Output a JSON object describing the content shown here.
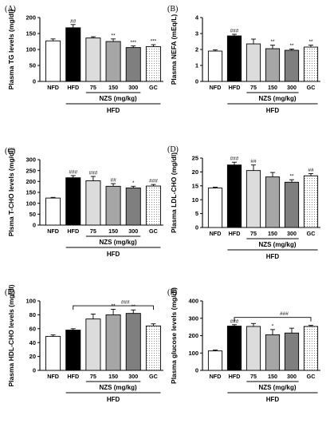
{
  "colors": {
    "NFD": "#ffffff",
    "HFD": "#000000",
    "NZS75": "#dcdcdc",
    "NZS150": "#a6a6a6",
    "NZS300": "#7f7f7f",
    "GC": "#ffffff",
    "GC_pattern": "dotted",
    "axis": "#000000"
  },
  "chart_data": [
    {
      "panel": "(A)",
      "type": "bar",
      "ylabel": "Plasma TG levels (mg/dl)",
      "categories": [
        "NFD",
        "HFD",
        "75",
        "150",
        "300",
        "GC"
      ],
      "values": [
        127,
        168,
        136,
        125,
        106,
        109
      ],
      "errors": [
        6,
        10,
        4,
        8,
        5,
        6
      ],
      "significance": [
        "",
        "##",
        "",
        "**",
        "***",
        "***"
      ],
      "ylim": [
        0,
        200
      ],
      "yticks": [
        0,
        50,
        100,
        150,
        200
      ],
      "group_label": "NZS (mg/kg)",
      "bottom_label": "HFD",
      "bracket": null
    },
    {
      "panel": "(B)",
      "type": "bar",
      "ylabel": "Plasma NEFA (mEq/L)",
      "categories": [
        "NFD",
        "HFD",
        "75",
        "150",
        "300",
        "GC"
      ],
      "values": [
        1.9,
        2.85,
        2.35,
        2.05,
        1.95,
        2.15
      ],
      "errors": [
        0.08,
        0.1,
        0.3,
        0.22,
        0.08,
        0.12
      ],
      "significance": [
        "",
        "###",
        "",
        "**",
        "**",
        "**"
      ],
      "ylim": [
        0,
        4
      ],
      "yticks": [
        0,
        1,
        2,
        3,
        4
      ],
      "group_label": "NZS (mg/kg)",
      "bottom_label": "HFD",
      "bracket": null
    },
    {
      "panel": "(C)",
      "type": "bar",
      "ylabel": "Plsma T-CHO levels (mg/dl)",
      "categories": [
        "NFD",
        "HFD",
        "75",
        "150",
        "300",
        "GC"
      ],
      "values": [
        124,
        217,
        203,
        178,
        170,
        179
      ],
      "errors": [
        3,
        10,
        20,
        12,
        8,
        7
      ],
      "significance": [
        "",
        "###",
        "###",
        "##",
        "*",
        "###"
      ],
      "ylim": [
        0,
        300
      ],
      "yticks": [
        0,
        50,
        100,
        150,
        200,
        250,
        300
      ],
      "group_label": "NZS (mg/kg)",
      "bottom_label": "HFD",
      "bracket": null
    },
    {
      "panel": "(D)",
      "type": "bar",
      "ylabel": "Plasma LDL-CHO (mg/dl)",
      "categories": [
        "NFD",
        "HFD",
        "75",
        "150",
        "300",
        "GC"
      ],
      "values": [
        14.2,
        22.5,
        20.5,
        18.2,
        16.3,
        18.6
      ],
      "errors": [
        0.3,
        1.0,
        2.0,
        1.6,
        0.9,
        0.8
      ],
      "significance": [
        "",
        "###",
        "##",
        "",
        "**",
        "##"
      ],
      "ylim": [
        0,
        25
      ],
      "yticks": [
        0,
        5,
        10,
        15,
        20,
        25
      ],
      "group_label": "NZS (mg/kg)",
      "bottom_label": "HFD",
      "bracket": null
    },
    {
      "panel": "(E)",
      "type": "bar",
      "ylabel": "Plasma HDL-CHO levels (mg/dl)",
      "categories": [
        "NFD",
        "HFD",
        "75",
        "150",
        "300",
        "GC"
      ],
      "values": [
        49,
        58,
        74,
        80,
        82,
        64
      ],
      "errors": [
        2,
        2,
        7,
        8,
        5,
        3
      ],
      "significance": [
        "",
        "",
        "",
        "**",
        "**",
        ""
      ],
      "ylim": [
        0,
        100
      ],
      "yticks": [
        0,
        20,
        40,
        60,
        80,
        100
      ],
      "group_label": "NZS (mg/kg)",
      "bottom_label": "HFD",
      "bracket": {
        "from": 1,
        "to": 5,
        "value": 93,
        "label": "###"
      }
    },
    {
      "panel": "(F)",
      "type": "bar",
      "ylabel": "Plasma glucose levels (mg/dl)",
      "categories": [
        "NFD",
        "HFD",
        "75",
        "150",
        "300",
        "GC"
      ],
      "values": [
        112,
        255,
        253,
        205,
        215,
        253
      ],
      "errors": [
        5,
        8,
        17,
        30,
        28,
        6
      ],
      "significance": [
        "",
        "###",
        "",
        "*",
        "",
        ""
      ],
      "ylim": [
        0,
        400
      ],
      "yticks": [
        0,
        100,
        200,
        300,
        400
      ],
      "group_label": "NZS (mg/kg)",
      "bottom_label": "HFD",
      "bracket": {
        "from": 1,
        "to": 5,
        "value": 305,
        "label": "###"
      }
    }
  ]
}
